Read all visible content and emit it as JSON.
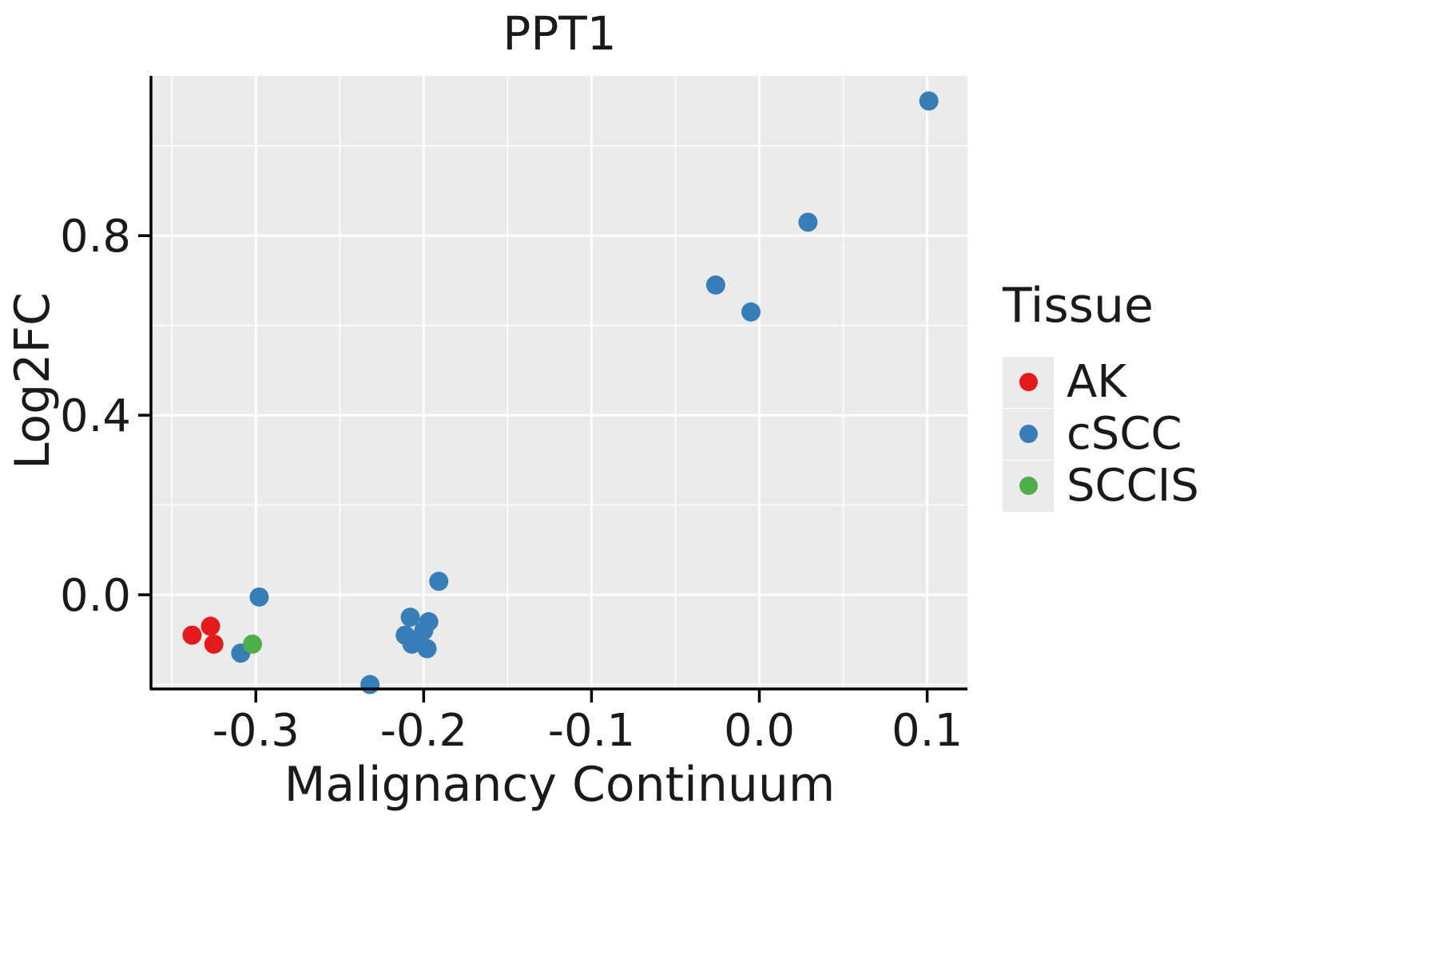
{
  "chart_data": {
    "type": "scatter",
    "title": "PPT1",
    "xlabel": "Malignancy Continuum",
    "ylabel": "Log2FC",
    "legend_title": "Tissue",
    "legend_position": "right",
    "xlim": [
      -0.362,
      0.124
    ],
    "ylim": [
      -0.208,
      1.156
    ],
    "x_ticks": [
      -0.3,
      -0.2,
      -0.1,
      0.0,
      0.1
    ],
    "x_tick_labels": [
      "-0.3",
      "-0.2",
      "-0.1",
      "0.0",
      "0.1"
    ],
    "x_minor_ticks": [
      -0.35,
      -0.25,
      -0.15,
      -0.05,
      0.05
    ],
    "y_ticks": [
      0.0,
      0.4,
      0.8
    ],
    "y_tick_labels": [
      "0.0",
      "0.4",
      "0.8"
    ],
    "y_minor_ticks": [
      -0.2,
      0.2,
      0.6,
      1.0
    ],
    "panel_background": "#EBEBEB",
    "grid_color": "#FFFFFF",
    "axis_color": "#000000",
    "grid": true,
    "series": [
      {
        "name": "AK",
        "color": "#E41A1C",
        "points": [
          [
            -0.338,
            -0.09
          ],
          [
            -0.327,
            -0.07
          ],
          [
            -0.325,
            -0.11
          ]
        ]
      },
      {
        "name": "cSCC",
        "color": "#377EB8",
        "points": [
          [
            0.101,
            1.1
          ],
          [
            0.029,
            0.83
          ],
          [
            -0.026,
            0.69
          ],
          [
            -0.005,
            0.63
          ],
          [
            -0.191,
            0.03
          ],
          [
            -0.298,
            -0.005
          ],
          [
            -0.208,
            -0.05
          ],
          [
            -0.197,
            -0.06
          ],
          [
            -0.2,
            -0.08
          ],
          [
            -0.211,
            -0.09
          ],
          [
            -0.205,
            -0.1
          ],
          [
            -0.207,
            -0.11
          ],
          [
            -0.198,
            -0.12
          ],
          [
            -0.309,
            -0.13
          ],
          [
            -0.232,
            -0.2
          ]
        ]
      },
      {
        "name": "SCCIS",
        "color": "#4DAF4A",
        "points": [
          [
            -0.302,
            -0.11
          ]
        ]
      }
    ]
  }
}
